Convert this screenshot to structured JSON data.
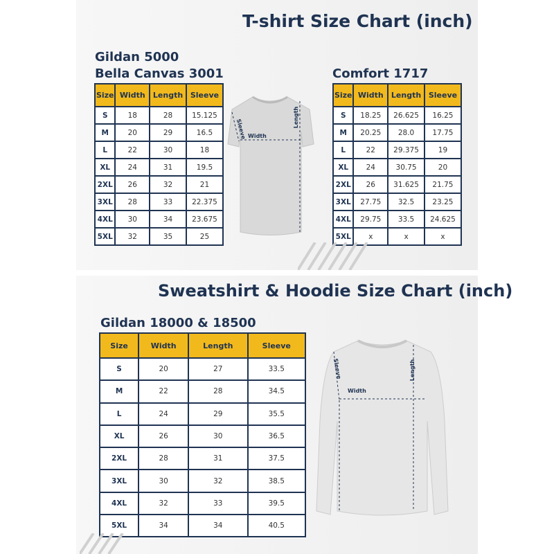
{
  "tshirt_section": {
    "title": "T-shirt Size Chart (inch)",
    "left_table": {
      "heading_line1": "Gildan 5000",
      "heading_line2": "Bella Canvas 3001",
      "columns": [
        "Size",
        "Width",
        "Length",
        "Sleeve"
      ],
      "rows": [
        [
          "S",
          "18",
          "28",
          "15.125"
        ],
        [
          "M",
          "20",
          "29",
          "16.5"
        ],
        [
          "L",
          "22",
          "30",
          "18"
        ],
        [
          "XL",
          "24",
          "31",
          "19.5"
        ],
        [
          "2XL",
          "26",
          "32",
          "21"
        ],
        [
          "3XL",
          "28",
          "33",
          "22.375"
        ],
        [
          "4XL",
          "30",
          "34",
          "23.675"
        ],
        [
          "5XL",
          "32",
          "35",
          "25"
        ]
      ]
    },
    "right_table": {
      "heading": "Comfort 1717",
      "columns": [
        "Size",
        "Width",
        "Length",
        "Sleeve"
      ],
      "rows": [
        [
          "S",
          "18.25",
          "26.625",
          "16.25"
        ],
        [
          "M",
          "20.25",
          "28.0",
          "17.75"
        ],
        [
          "L",
          "22",
          "29.375",
          "19"
        ],
        [
          "XL",
          "24",
          "30.75",
          "20"
        ],
        [
          "2XL",
          "26",
          "31.625",
          "21.75"
        ],
        [
          "3XL",
          "27.75",
          "32.5",
          "23.25"
        ],
        [
          "4XL",
          "29.75",
          "33.5",
          "24.625"
        ],
        [
          "5XL",
          "x",
          "x",
          "x"
        ]
      ]
    },
    "diagram_labels": {
      "sleeve": "Sleeve",
      "width": "Width",
      "length": "Length"
    }
  },
  "sweatshirt_section": {
    "title": "Sweatshirt & Hoodie Size Chart (inch)",
    "table": {
      "heading": "Gildan 18000 & 18500",
      "columns": [
        "Size",
        "Width",
        "Length",
        "Sleeve"
      ],
      "rows": [
        [
          "S",
          "20",
          "27",
          "33.5"
        ],
        [
          "M",
          "22",
          "28",
          "34.5"
        ],
        [
          "L",
          "24",
          "29",
          "35.5"
        ],
        [
          "XL",
          "26",
          "30",
          "36.5"
        ],
        [
          "2XL",
          "28",
          "31",
          "37.5"
        ],
        [
          "3XL",
          "30",
          "32",
          "38.5"
        ],
        [
          "4XL",
          "32",
          "33",
          "39.5"
        ],
        [
          "5XL",
          "34",
          "34",
          "40.5"
        ]
      ]
    },
    "diagram_labels": {
      "sleeve": "Sleeve",
      "width": "Width",
      "length": "Length"
    }
  },
  "colors": {
    "navy": "#1f3352",
    "header_yellow": "#f2b91c"
  }
}
